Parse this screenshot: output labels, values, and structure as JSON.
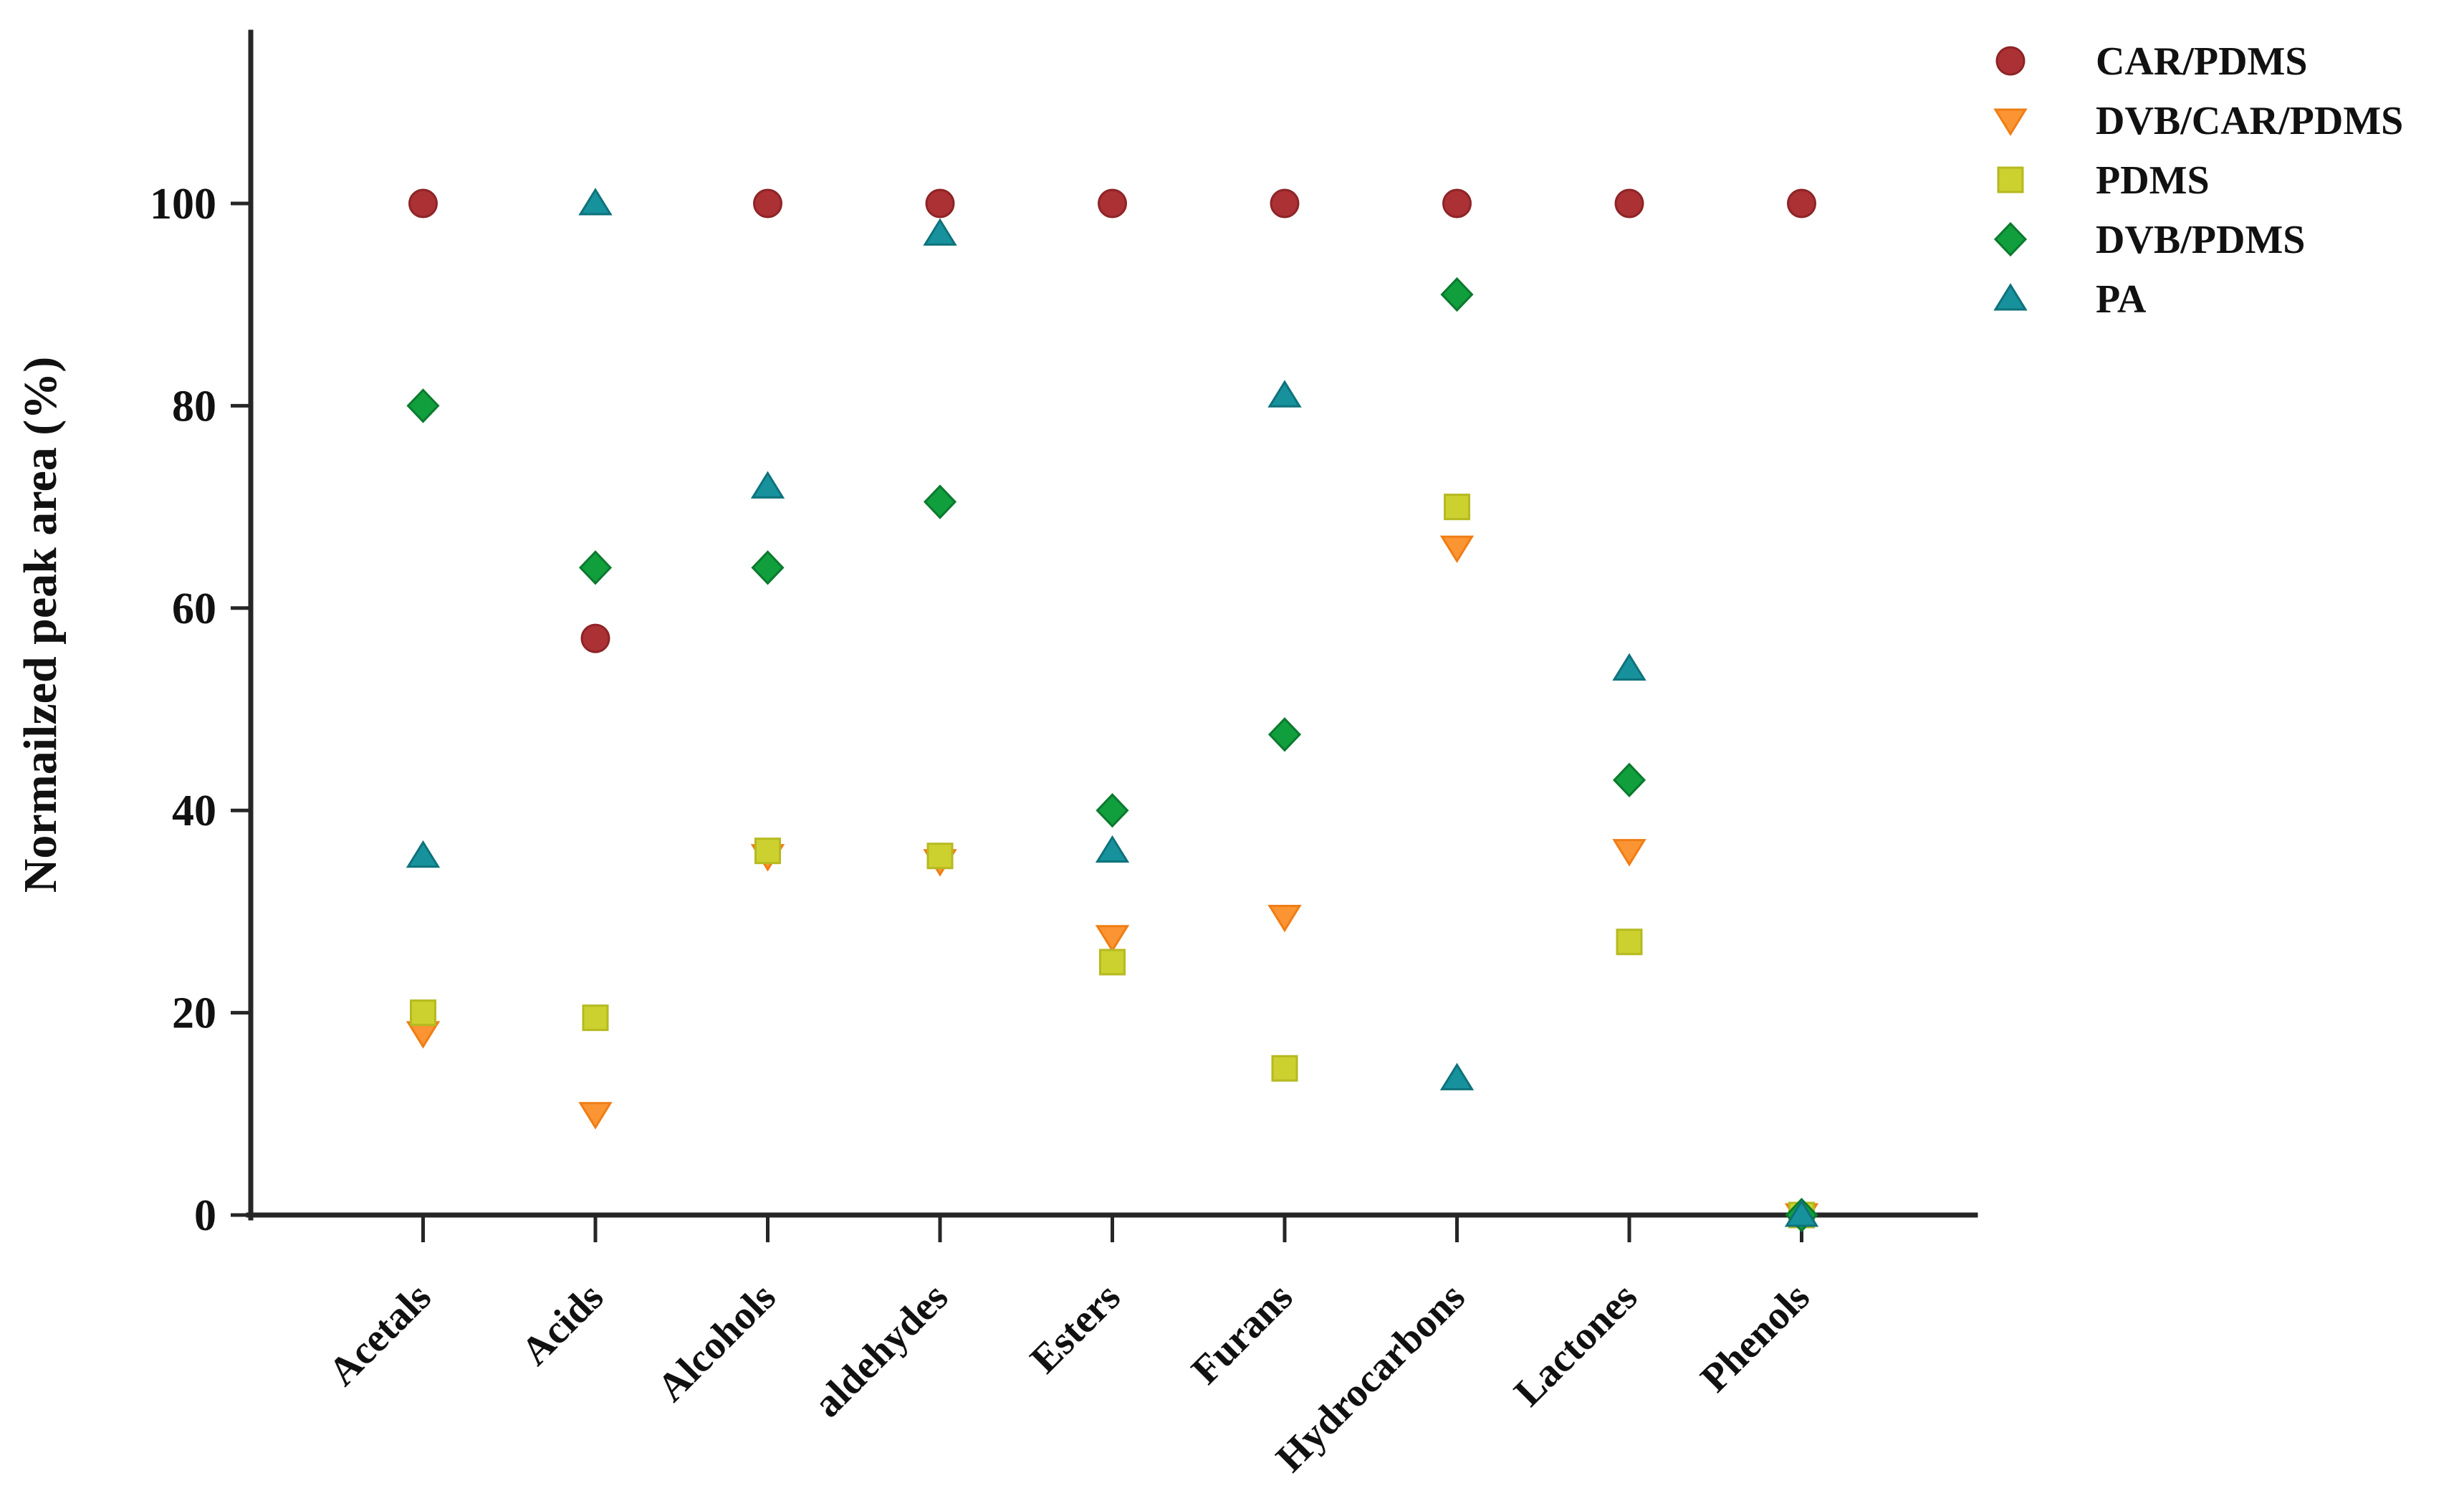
{
  "chart_data": {
    "type": "scatter",
    "title": "",
    "xlabel": "",
    "ylabel": "Normailzed peak area (%)",
    "ylim": [
      0,
      117
    ],
    "yticks": [
      0,
      20,
      40,
      60,
      80,
      100
    ],
    "grid": false,
    "legend_position": "upper-right-outside",
    "categories": [
      "Acetals",
      "Acids",
      "Alcohols",
      "aldehydes",
      "Esters",
      "Furans",
      "Hydrocarbons",
      "Lactones",
      "Phenols"
    ],
    "series": [
      {
        "name": "CAR/PDMS",
        "marker": "circle",
        "color": "#ab3134",
        "edge": "#8e2427",
        "values": [
          100,
          57,
          100,
          100,
          100,
          100,
          100,
          100,
          100
        ]
      },
      {
        "name": "DVB/CAR/PDMS",
        "marker": "triangle-down",
        "color": "#fb9433",
        "edge": "#ef7d14",
        "values": [
          18,
          10,
          35.5,
          35,
          27.5,
          29.5,
          66,
          36,
          0
        ]
      },
      {
        "name": "PDMS",
        "marker": "square",
        "color": "#ccd12f",
        "edge": "#b5ba20",
        "values": [
          20,
          19.5,
          36,
          35.5,
          25,
          14.5,
          70,
          27,
          0
        ]
      },
      {
        "name": "DVB/PDMS",
        "marker": "diamond",
        "color": "#119f3d",
        "edge": "#0b7a2e",
        "values": [
          80,
          64,
          64,
          70.5,
          40,
          47.5,
          91,
          43,
          0
        ]
      },
      {
        "name": "PA",
        "marker": "triangle-up",
        "color": "#17929c",
        "edge": "#0e727b",
        "values": [
          35.5,
          100,
          72,
          97,
          36,
          81,
          13.5,
          54,
          0
        ]
      }
    ]
  }
}
